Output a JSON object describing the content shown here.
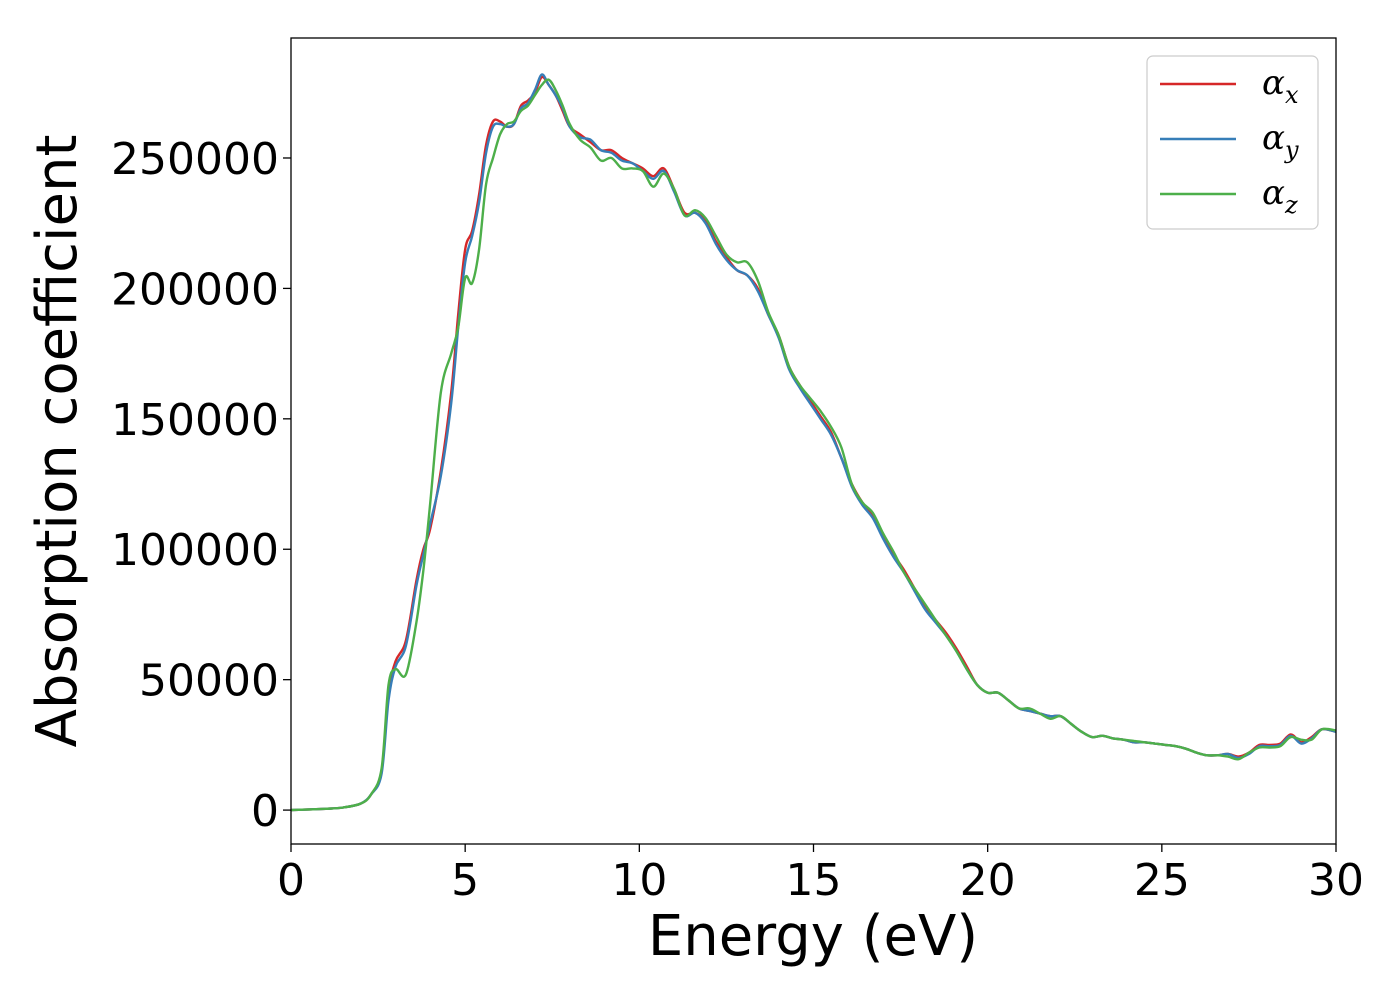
{
  "chart_data": {
    "type": "line",
    "title": "",
    "xlabel": "Energy (eV)",
    "ylabel": "Absorption coefficient",
    "xlim": [
      0,
      30
    ],
    "ylim": [
      -13000,
      296000
    ],
    "xticks": [
      0,
      5,
      10,
      15,
      20,
      25,
      30
    ],
    "yticks": [
      0,
      50000,
      100000,
      150000,
      200000,
      250000
    ],
    "grid": false,
    "legend": {
      "position": "top-right"
    },
    "series": [
      {
        "name": "α_x",
        "symbol": "α",
        "subscript": "x",
        "color": "#d62728",
        "x": [
          0,
          1,
          1.5,
          2,
          2.3,
          2.6,
          2.8,
          3,
          3.3,
          3.6,
          3.8,
          4,
          4.3,
          4.6,
          4.8,
          5,
          5.2,
          5.4,
          5.6,
          5.8,
          6,
          6.2,
          6.4,
          6.6,
          6.8,
          7,
          7.2,
          7.4,
          7.6,
          7.8,
          8,
          8.3,
          8.6,
          8.9,
          9.2,
          9.5,
          9.8,
          10.1,
          10.4,
          10.7,
          11,
          11.3,
          11.6,
          11.9,
          12.2,
          12.5,
          12.8,
          13.1,
          13.4,
          13.7,
          14,
          14.3,
          14.6,
          14.9,
          15.2,
          15.5,
          15.8,
          16.1,
          16.4,
          16.7,
          17,
          17.3,
          17.6,
          17.9,
          18.2,
          18.5,
          18.8,
          19.1,
          19.4,
          19.7,
          20,
          20.3,
          20.6,
          20.9,
          21.2,
          21.5,
          21.8,
          22.1,
          22.4,
          22.7,
          23,
          23.3,
          23.6,
          23.9,
          24.2,
          24.5,
          24.8,
          25.1,
          25.4,
          25.7,
          26,
          26.3,
          26.6,
          26.9,
          27.2,
          27.5,
          27.8,
          28.1,
          28.4,
          28.7,
          29,
          29.3,
          29.6,
          30
        ],
        "y": [
          0,
          500,
          1000,
          2500,
          6000,
          15000,
          45000,
          57000,
          65000,
          88000,
          100000,
          108000,
          130000,
          160000,
          190000,
          215000,
          222000,
          236000,
          255000,
          264000,
          264000,
          262000,
          263000,
          270000,
          272000,
          275000,
          281000,
          278000,
          274000,
          268000,
          262000,
          259000,
          256000,
          253000,
          253000,
          250000,
          248000,
          246000,
          243000,
          246000,
          238000,
          229000,
          229000,
          226000,
          218000,
          212000,
          207000,
          205000,
          200000,
          190000,
          182000,
          170000,
          163000,
          157000,
          151000,
          145000,
          135000,
          125000,
          118000,
          113000,
          105000,
          98000,
          92000,
          85000,
          78000,
          73000,
          68000,
          62000,
          55000,
          48000,
          45000,
          45000,
          42000,
          39000,
          38000,
          37000,
          36000,
          36000,
          33000,
          30000,
          28000,
          28500,
          27500,
          27000,
          26000,
          26000,
          25500,
          25000,
          24500,
          23500,
          22000,
          21000,
          21000,
          21500,
          20500,
          22000,
          25000,
          25000,
          25500,
          29000,
          26000,
          28000,
          31000,
          30000
        ]
      },
      {
        "name": "α_y",
        "symbol": "α",
        "subscript": "y",
        "color": "#377eb8",
        "x": [
          0,
          1,
          1.5,
          2,
          2.3,
          2.6,
          2.8,
          3,
          3.3,
          3.6,
          3.8,
          4,
          4.3,
          4.6,
          4.8,
          5,
          5.2,
          5.4,
          5.6,
          5.8,
          6,
          6.2,
          6.4,
          6.6,
          6.8,
          7,
          7.2,
          7.4,
          7.6,
          7.8,
          8,
          8.3,
          8.6,
          8.9,
          9.2,
          9.5,
          9.8,
          10.1,
          10.4,
          10.7,
          11,
          11.3,
          11.6,
          11.9,
          12.2,
          12.5,
          12.8,
          13.1,
          13.4,
          13.7,
          14,
          14.3,
          14.6,
          14.9,
          15.2,
          15.5,
          15.8,
          16.1,
          16.4,
          16.7,
          17,
          17.3,
          17.6,
          17.9,
          18.2,
          18.5,
          18.8,
          19.1,
          19.4,
          19.7,
          20,
          20.3,
          20.6,
          20.9,
          21.2,
          21.5,
          21.8,
          22.1,
          22.4,
          22.7,
          23,
          23.3,
          23.6,
          23.9,
          24.2,
          24.5,
          24.8,
          25.1,
          25.4,
          25.7,
          26,
          26.3,
          26.6,
          26.9,
          27.2,
          27.5,
          27.8,
          28.1,
          28.4,
          28.7,
          29,
          29.3,
          29.6,
          30
        ],
        "y": [
          0,
          500,
          1000,
          2500,
          6000,
          14000,
          42000,
          55000,
          63000,
          86000,
          98000,
          110000,
          128000,
          156000,
          185000,
          210000,
          220000,
          233000,
          252000,
          262000,
          263000,
          262000,
          263000,
          269000,
          271000,
          276000,
          282000,
          278000,
          274000,
          269000,
          262000,
          258000,
          257000,
          253000,
          252000,
          249000,
          248000,
          245000,
          242000,
          245000,
          237000,
          228000,
          229000,
          225000,
          217000,
          211000,
          207000,
          205000,
          199000,
          190000,
          181000,
          169000,
          162000,
          156000,
          150000,
          144000,
          135000,
          124000,
          117000,
          112000,
          104000,
          97000,
          91000,
          84000,
          77000,
          72000,
          67000,
          61000,
          54000,
          48000,
          45000,
          45000,
          42000,
          39000,
          38000,
          37000,
          36000,
          36000,
          33000,
          30000,
          28000,
          28500,
          27500,
          27000,
          26000,
          26000,
          25500,
          25000,
          24500,
          23500,
          22000,
          21000,
          21000,
          21500,
          20000,
          21500,
          24500,
          24500,
          25000,
          28500,
          25500,
          27500,
          31000,
          30000
        ]
      },
      {
        "name": "α_z",
        "symbol": "α",
        "subscript": "z",
        "color": "#4daf4a",
        "x": [
          0,
          1,
          1.5,
          2,
          2.3,
          2.6,
          2.8,
          3,
          3.3,
          3.6,
          3.8,
          4,
          4.3,
          4.6,
          4.8,
          5,
          5.2,
          5.4,
          5.6,
          5.8,
          6,
          6.2,
          6.4,
          6.6,
          6.8,
          7,
          7.2,
          7.4,
          7.6,
          7.8,
          8,
          8.3,
          8.6,
          8.9,
          9.2,
          9.5,
          9.8,
          10.1,
          10.4,
          10.7,
          11,
          11.3,
          11.6,
          11.9,
          12.2,
          12.5,
          12.8,
          13.1,
          13.4,
          13.7,
          14,
          14.3,
          14.6,
          14.9,
          15.2,
          15.5,
          15.8,
          16.1,
          16.4,
          16.7,
          17,
          17.3,
          17.6,
          17.9,
          18.2,
          18.5,
          18.8,
          19.1,
          19.4,
          19.7,
          20,
          20.3,
          20.6,
          20.9,
          21.2,
          21.5,
          21.8,
          22.1,
          22.4,
          22.7,
          23,
          23.3,
          23.6,
          23.9,
          24.2,
          24.5,
          24.8,
          25.1,
          25.4,
          25.7,
          26,
          26.3,
          26.6,
          26.9,
          27.2,
          27.5,
          27.8,
          28.1,
          28.4,
          28.7,
          29,
          29.3,
          29.6,
          30
        ],
        "y": [
          0,
          500,
          1000,
          2500,
          6000,
          16000,
          48000,
          54000,
          52000,
          72000,
          92000,
          118000,
          160000,
          175000,
          185000,
          204000,
          202000,
          215000,
          240000,
          250000,
          259000,
          263000,
          264000,
          268000,
          270000,
          274000,
          278000,
          280000,
          276000,
          270000,
          263000,
          257000,
          254000,
          249000,
          250000,
          246000,
          246000,
          245000,
          239000,
          244000,
          238000,
          228000,
          230000,
          227000,
          220000,
          213000,
          210000,
          210000,
          203000,
          191000,
          182000,
          170000,
          163000,
          158000,
          153000,
          147000,
          139000,
          125000,
          118000,
          114000,
          106000,
          99000,
          91000,
          85000,
          79000,
          73000,
          67000,
          61000,
          54000,
          48000,
          45000,
          45000,
          42000,
          39000,
          39000,
          37000,
          35000,
          36000,
          33000,
          30000,
          28000,
          28500,
          27500,
          27000,
          26500,
          26000,
          25500,
          25000,
          24500,
          23500,
          22000,
          21000,
          21000,
          20500,
          19500,
          22000,
          24000,
          24000,
          24500,
          28000,
          27000,
          27000,
          31000,
          30500
        ]
      }
    ]
  }
}
